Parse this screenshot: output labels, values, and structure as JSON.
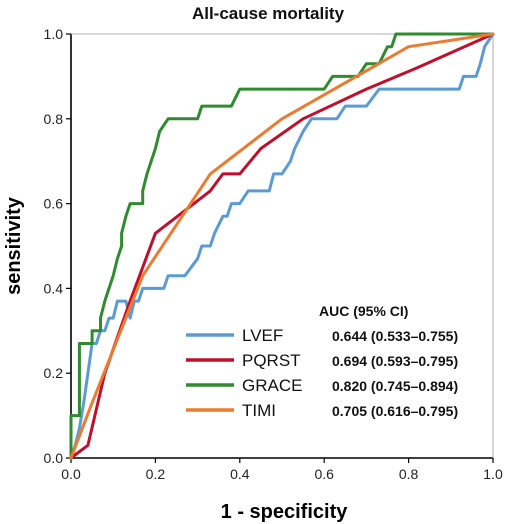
{
  "chart_data": {
    "type": "line",
    "title": "All-cause mortality",
    "xlabel": "1 - specificity",
    "ylabel": "sensitivity",
    "xlim": [
      0.0,
      1.0
    ],
    "ylim": [
      0.0,
      1.0
    ],
    "xticks": [
      "0.0",
      "0.2",
      "0.4",
      "0.6",
      "0.8",
      "1.0"
    ],
    "yticks": [
      "0.0",
      "0.2",
      "0.4",
      "0.6",
      "0.8",
      "1.0"
    ],
    "grid": false,
    "legend_header": "AUC (95% CI)",
    "legend_position": "bottom-right",
    "series": [
      {
        "name": "LVEF",
        "auc": "0.644 (0.533–0.755)",
        "color": "#5b9bd5",
        "points": [
          [
            0,
            0
          ],
          [
            0.01,
            0.03
          ],
          [
            0.02,
            0.07
          ],
          [
            0.03,
            0.13
          ],
          [
            0.04,
            0.2
          ],
          [
            0.05,
            0.27
          ],
          [
            0.06,
            0.27
          ],
          [
            0.07,
            0.3
          ],
          [
            0.08,
            0.3
          ],
          [
            0.09,
            0.33
          ],
          [
            0.1,
            0.33
          ],
          [
            0.11,
            0.37
          ],
          [
            0.12,
            0.37
          ],
          [
            0.13,
            0.37
          ],
          [
            0.14,
            0.33
          ],
          [
            0.15,
            0.37
          ],
          [
            0.16,
            0.37
          ],
          [
            0.17,
            0.4
          ],
          [
            0.2,
            0.4
          ],
          [
            0.22,
            0.4
          ],
          [
            0.23,
            0.43
          ],
          [
            0.27,
            0.43
          ],
          [
            0.3,
            0.47
          ],
          [
            0.31,
            0.5
          ],
          [
            0.33,
            0.5
          ],
          [
            0.34,
            0.53
          ],
          [
            0.36,
            0.57
          ],
          [
            0.37,
            0.57
          ],
          [
            0.38,
            0.6
          ],
          [
            0.4,
            0.6
          ],
          [
            0.42,
            0.63
          ],
          [
            0.47,
            0.63
          ],
          [
            0.48,
            0.67
          ],
          [
            0.5,
            0.67
          ],
          [
            0.52,
            0.7
          ],
          [
            0.53,
            0.73
          ],
          [
            0.55,
            0.77
          ],
          [
            0.57,
            0.8
          ],
          [
            0.63,
            0.8
          ],
          [
            0.65,
            0.83
          ],
          [
            0.7,
            0.83
          ],
          [
            0.73,
            0.87
          ],
          [
            0.92,
            0.87
          ],
          [
            0.93,
            0.9
          ],
          [
            0.96,
            0.9
          ],
          [
            0.97,
            0.93
          ],
          [
            0.98,
            0.97
          ],
          [
            1,
            1
          ]
        ]
      },
      {
        "name": "PQRST",
        "auc": "0.694 (0.593–0.795)",
        "color": "#c00f2c",
        "points": [
          [
            0,
            0
          ],
          [
            0.04,
            0.03
          ],
          [
            0.08,
            0.2
          ],
          [
            0.14,
            0.37
          ],
          [
            0.2,
            0.53
          ],
          [
            0.33,
            0.63
          ],
          [
            0.36,
            0.67
          ],
          [
            0.4,
            0.67
          ],
          [
            0.45,
            0.73
          ],
          [
            0.55,
            0.8
          ],
          [
            0.7,
            0.87
          ],
          [
            0.82,
            0.92
          ],
          [
            1,
            1
          ]
        ]
      },
      {
        "name": "GRACE",
        "auc": "0.820 (0.745–0.894)",
        "color": "#2e8b2e",
        "points": [
          [
            0,
            0
          ],
          [
            0.0,
            0.1
          ],
          [
            0.02,
            0.1
          ],
          [
            0.02,
            0.13
          ],
          [
            0.02,
            0.2
          ],
          [
            0.02,
            0.27
          ],
          [
            0.05,
            0.27
          ],
          [
            0.05,
            0.3
          ],
          [
            0.07,
            0.3
          ],
          [
            0.07,
            0.33
          ],
          [
            0.08,
            0.37
          ],
          [
            0.09,
            0.4
          ],
          [
            0.1,
            0.43
          ],
          [
            0.11,
            0.47
          ],
          [
            0.12,
            0.5
          ],
          [
            0.12,
            0.53
          ],
          [
            0.13,
            0.57
          ],
          [
            0.14,
            0.6
          ],
          [
            0.17,
            0.6
          ],
          [
            0.17,
            0.63
          ],
          [
            0.18,
            0.67
          ],
          [
            0.19,
            0.7
          ],
          [
            0.2,
            0.73
          ],
          [
            0.21,
            0.77
          ],
          [
            0.23,
            0.8
          ],
          [
            0.3,
            0.8
          ],
          [
            0.31,
            0.83
          ],
          [
            0.38,
            0.83
          ],
          [
            0.4,
            0.87
          ],
          [
            0.6,
            0.87
          ],
          [
            0.62,
            0.9
          ],
          [
            0.68,
            0.9
          ],
          [
            0.7,
            0.93
          ],
          [
            0.73,
            0.93
          ],
          [
            0.75,
            0.97
          ],
          [
            0.76,
            0.97
          ],
          [
            0.77,
            1
          ],
          [
            1,
            1
          ]
        ]
      },
      {
        "name": "TIMI",
        "auc": "0.705 (0.616–0.795)",
        "color": "#ec7a30",
        "points": [
          [
            0,
            0
          ],
          [
            0.05,
            0.13
          ],
          [
            0.17,
            0.43
          ],
          [
            0.33,
            0.67
          ],
          [
            0.5,
            0.8
          ],
          [
            0.8,
            0.97
          ],
          [
            1,
            1
          ]
        ]
      }
    ]
  }
}
